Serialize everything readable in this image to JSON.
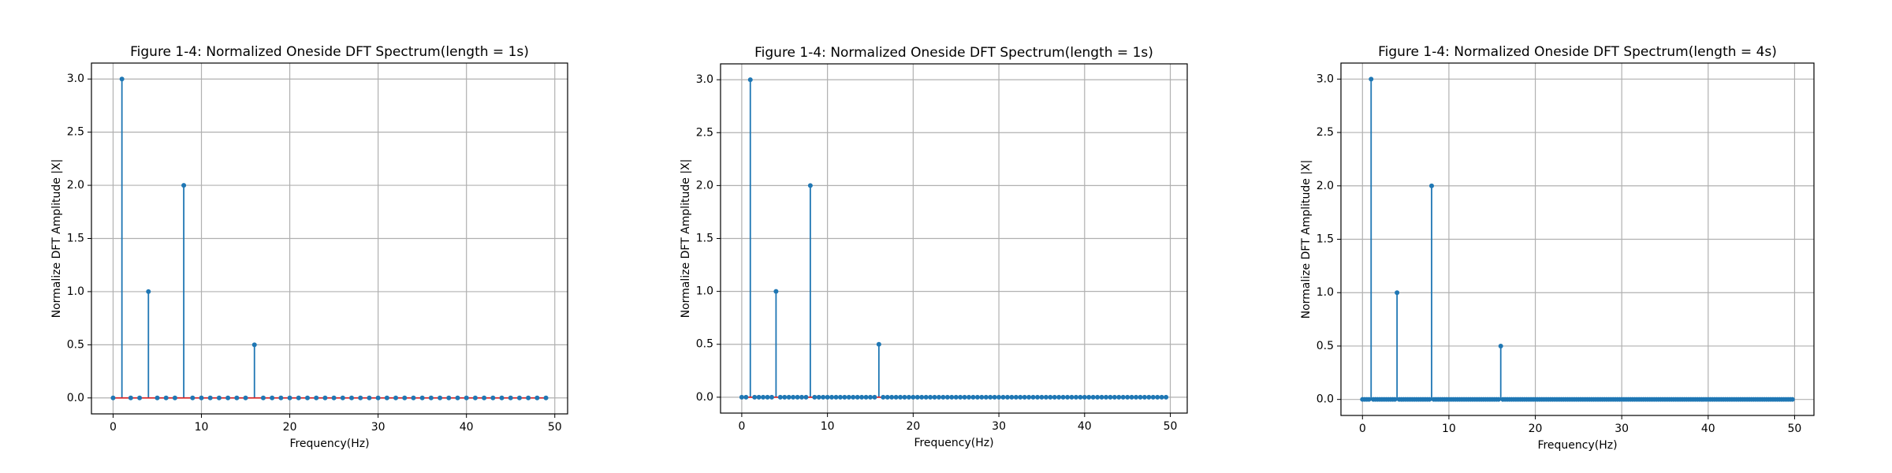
{
  "chart_data": [
    {
      "type": "stem",
      "title": "Figure 1-4: Normalized Oneside DFT Spectrum(length = 1s)",
      "x_label": "Frequency(Hz)",
      "y_label": "Normalize DFT Amplitude |X|",
      "color": "#1f77b4",
      "baseline_color": "#d62728",
      "grid": true,
      "xlim": [
        -2.45,
        51.45
      ],
      "ylim": [
        -0.15,
        3.15
      ],
      "xticks": [
        0,
        10,
        20,
        30,
        40,
        50
      ],
      "yticks": [
        {
          "value": 0,
          "label": "0.0"
        },
        {
          "value": 0.5,
          "label": "0.5"
        },
        {
          "value": 1,
          "label": "1.0"
        },
        {
          "value": 1.5,
          "label": "1.5"
        },
        {
          "value": 2,
          "label": "2.0"
        },
        {
          "value": 2.5,
          "label": "2.5"
        },
        {
          "value": 3,
          "label": "3.0"
        }
      ],
      "x": [
        0,
        1,
        2,
        3,
        4,
        5,
        6,
        7,
        8,
        9,
        10,
        11,
        12,
        13,
        14,
        15,
        16,
        17,
        18,
        19,
        20,
        21,
        22,
        23,
        24,
        25,
        26,
        27,
        28,
        29,
        30,
        31,
        32,
        33,
        34,
        35,
        36,
        37,
        38,
        39,
        40,
        41,
        42,
        43,
        44,
        45,
        46,
        47,
        48,
        49
      ],
      "values": [
        0,
        3,
        0,
        0,
        1,
        0,
        0,
        0,
        2,
        0,
        0,
        0,
        0,
        0,
        0,
        0,
        0.5,
        0,
        0,
        0,
        0,
        0,
        0,
        0,
        0,
        0,
        0,
        0,
        0,
        0,
        0,
        0,
        0,
        0,
        0,
        0,
        0,
        0,
        0,
        0,
        0,
        0,
        0,
        0,
        0,
        0,
        0,
        0,
        0,
        0
      ]
    },
    {
      "type": "stem",
      "title": "Figure 1-4: Normalized Oneside DFT Spectrum(length = 1s)",
      "x_label": "Frequency(Hz)",
      "y_label": "Normalize DFT Amplitude |X|",
      "color": "#1f77b4",
      "baseline_color": "#d62728",
      "grid": true,
      "xlim": [
        -2.475,
        51.975
      ],
      "ylim": [
        -0.15,
        3.15
      ],
      "xticks": [
        0,
        10,
        20,
        30,
        40,
        50
      ],
      "yticks": [
        {
          "value": 0,
          "label": "0.0"
        },
        {
          "value": 0.5,
          "label": "0.5"
        },
        {
          "value": 1,
          "label": "1.0"
        },
        {
          "value": 1.5,
          "label": "1.5"
        },
        {
          "value": 2,
          "label": "2.0"
        },
        {
          "value": 2.5,
          "label": "2.5"
        },
        {
          "value": 3,
          "label": "3.0"
        }
      ],
      "x": [
        0,
        0.5,
        1,
        1.5,
        2,
        2.5,
        3,
        3.5,
        4,
        4.5,
        5,
        5.5,
        6,
        6.5,
        7,
        7.5,
        8,
        8.5,
        9,
        9.5,
        10,
        10.5,
        11,
        11.5,
        12,
        12.5,
        13,
        13.5,
        14,
        14.5,
        15,
        15.5,
        16,
        16.5,
        17,
        17.5,
        18,
        18.5,
        19,
        19.5,
        20,
        20.5,
        21,
        21.5,
        22,
        22.5,
        23,
        23.5,
        24,
        24.5,
        25,
        25.5,
        26,
        26.5,
        27,
        27.5,
        28,
        28.5,
        29,
        29.5,
        30,
        30.5,
        31,
        31.5,
        32,
        32.5,
        33,
        33.5,
        34,
        34.5,
        35,
        35.5,
        36,
        36.5,
        37,
        37.5,
        38,
        38.5,
        39,
        39.5,
        40,
        40.5,
        41,
        41.5,
        42,
        42.5,
        43,
        43.5,
        44,
        44.5,
        45,
        45.5,
        46,
        46.5,
        47,
        47.5,
        48,
        48.5,
        49,
        49.5
      ],
      "values": [
        0,
        0,
        3,
        0,
        0,
        0,
        0,
        0,
        1,
        0,
        0,
        0,
        0,
        0,
        0,
        0,
        2,
        0,
        0,
        0,
        0,
        0,
        0,
        0,
        0,
        0,
        0,
        0,
        0,
        0,
        0,
        0,
        0.5,
        0,
        0,
        0,
        0,
        0,
        0,
        0,
        0,
        0,
        0,
        0,
        0,
        0,
        0,
        0,
        0,
        0,
        0,
        0,
        0,
        0,
        0,
        0,
        0,
        0,
        0,
        0,
        0,
        0,
        0,
        0,
        0,
        0,
        0,
        0,
        0,
        0,
        0,
        0,
        0,
        0,
        0,
        0,
        0,
        0,
        0,
        0,
        0,
        0,
        0,
        0,
        0,
        0,
        0,
        0,
        0,
        0,
        0,
        0,
        0,
        0,
        0,
        0,
        0,
        0,
        0,
        0
      ]
    },
    {
      "type": "stem",
      "title": "Figure 1-4: Normalized Oneside DFT Spectrum(length = 4s)",
      "x_label": "Frequency(Hz)",
      "y_label": "Normalize DFT Amplitude |X|",
      "color": "#1f77b4",
      "baseline_color": "#d62728",
      "grid": true,
      "xlim": [
        -2.49,
        52.24
      ],
      "ylim": [
        -0.15,
        3.15
      ],
      "xticks": [
        0,
        10,
        20,
        30,
        40,
        50
      ],
      "yticks": [
        {
          "value": 0,
          "label": "0.0"
        },
        {
          "value": 0.5,
          "label": "0.5"
        },
        {
          "value": 1,
          "label": "1.0"
        },
        {
          "value": 1.5,
          "label": "1.5"
        },
        {
          "value": 2,
          "label": "2.0"
        },
        {
          "value": 2.5,
          "label": "2.5"
        },
        {
          "value": 3,
          "label": "3.0"
        }
      ],
      "x": [
        0,
        0.25,
        0.5,
        0.75,
        1,
        1.25,
        1.5,
        1.75,
        2,
        2.25,
        2.5,
        2.75,
        3,
        3.25,
        3.5,
        3.75,
        4,
        4.25,
        4.5,
        4.75,
        5,
        5.25,
        5.5,
        5.75,
        6,
        6.25,
        6.5,
        6.75,
        7,
        7.25,
        7.5,
        7.75,
        8,
        8.25,
        8.5,
        8.75,
        9,
        9.25,
        9.5,
        9.75,
        10,
        10.25,
        10.5,
        10.75,
        11,
        11.25,
        11.5,
        11.75,
        12,
        12.25,
        12.5,
        12.75,
        13,
        13.25,
        13.5,
        13.75,
        14,
        14.25,
        14.5,
        14.75,
        15,
        15.25,
        15.5,
        15.75,
        16,
        16.25,
        16.5,
        16.75,
        17,
        17.25,
        17.5,
        17.75,
        18,
        18.25,
        18.5,
        18.75,
        19,
        19.25,
        19.5,
        19.75,
        20,
        20.25,
        20.5,
        20.75,
        21,
        21.25,
        21.5,
        21.75,
        22,
        22.25,
        22.5,
        22.75,
        23,
        23.25,
        23.5,
        23.75,
        24,
        24.25,
        24.5,
        24.75,
        25,
        25.25,
        25.5,
        25.75,
        26,
        26.25,
        26.5,
        26.75,
        27,
        27.25,
        27.5,
        27.75,
        28,
        28.25,
        28.5,
        28.75,
        29,
        29.25,
        29.5,
        29.75,
        30,
        30.25,
        30.5,
        30.75,
        31,
        31.25,
        31.5,
        31.75,
        32,
        32.25,
        32.5,
        32.75,
        33,
        33.25,
        33.5,
        33.75,
        34,
        34.25,
        34.5,
        34.75,
        35,
        35.25,
        35.5,
        35.75,
        36,
        36.25,
        36.5,
        36.75,
        37,
        37.25,
        37.5,
        37.75,
        38,
        38.25,
        38.5,
        38.75,
        39,
        39.25,
        39.5,
        39.75,
        40,
        40.25,
        40.5,
        40.75,
        41,
        41.25,
        41.5,
        41.75,
        42,
        42.25,
        42.5,
        42.75,
        43,
        43.25,
        43.5,
        43.75,
        44,
        44.25,
        44.5,
        44.75,
        45,
        45.25,
        45.5,
        45.75,
        46,
        46.25,
        46.5,
        46.75,
        47,
        47.25,
        47.5,
        47.75,
        48,
        48.25,
        48.5,
        48.75,
        49,
        49.25,
        49.5,
        49.75
      ],
      "values": [
        0,
        0,
        0,
        0,
        3,
        0,
        0,
        0,
        0,
        0,
        0,
        0,
        0,
        0,
        0,
        0,
        1,
        0,
        0,
        0,
        0,
        0,
        0,
        0,
        0,
        0,
        0,
        0,
        0,
        0,
        0,
        0,
        2,
        0,
        0,
        0,
        0,
        0,
        0,
        0,
        0,
        0,
        0,
        0,
        0,
        0,
        0,
        0,
        0,
        0,
        0,
        0,
        0,
        0,
        0,
        0,
        0,
        0,
        0,
        0,
        0,
        0,
        0,
        0,
        0.5,
        0,
        0,
        0,
        0,
        0,
        0,
        0,
        0,
        0,
        0,
        0,
        0,
        0,
        0,
        0,
        0,
        0,
        0,
        0,
        0,
        0,
        0,
        0,
        0,
        0,
        0,
        0,
        0,
        0,
        0,
        0,
        0,
        0,
        0,
        0,
        0,
        0,
        0,
        0,
        0,
        0,
        0,
        0,
        0,
        0,
        0,
        0,
        0,
        0,
        0,
        0,
        0,
        0,
        0,
        0,
        0,
        0,
        0,
        0,
        0,
        0,
        0,
        0,
        0,
        0,
        0,
        0,
        0,
        0,
        0,
        0,
        0,
        0,
        0,
        0,
        0,
        0,
        0,
        0,
        0,
        0,
        0,
        0,
        0,
        0,
        0,
        0,
        0,
        0,
        0,
        0,
        0,
        0,
        0,
        0,
        0,
        0,
        0,
        0,
        0,
        0,
        0,
        0,
        0,
        0,
        0,
        0,
        0,
        0,
        0,
        0,
        0,
        0,
        0,
        0,
        0,
        0,
        0,
        0,
        0,
        0,
        0,
        0,
        0,
        0,
        0,
        0,
        0,
        0,
        0,
        0,
        0,
        0,
        0,
        0
      ]
    }
  ]
}
